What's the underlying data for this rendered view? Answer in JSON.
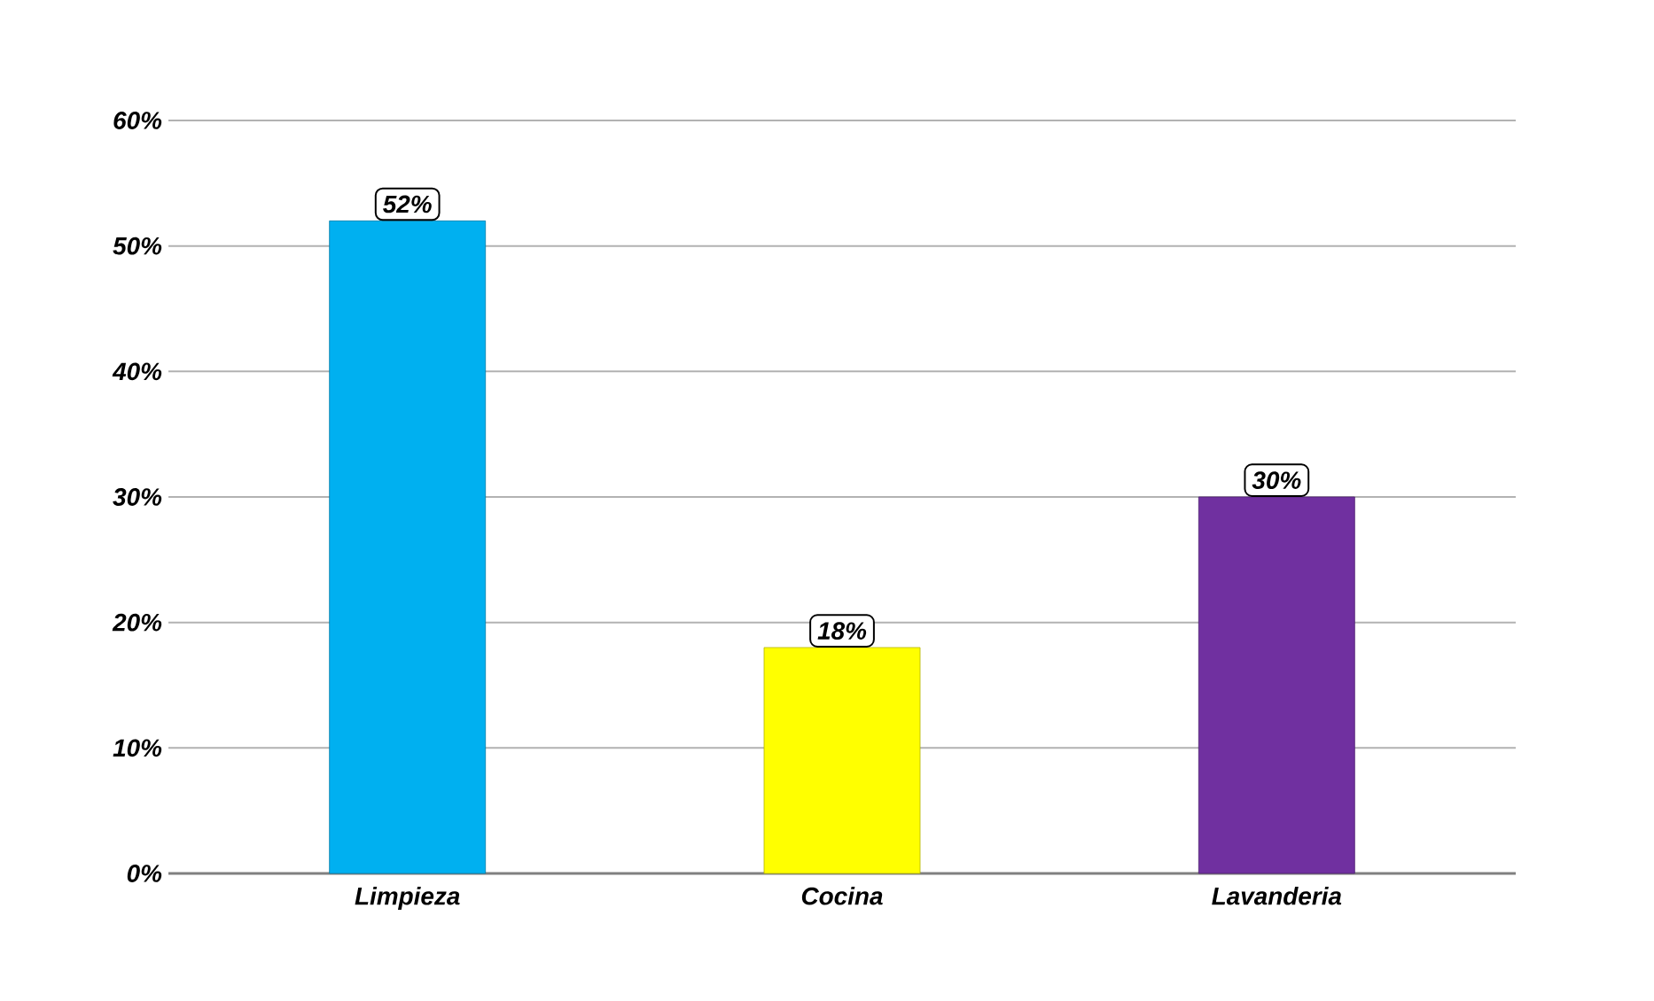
{
  "chart_data": {
    "type": "bar",
    "categories": [
      "Limpieza",
      "Cocina",
      "Lavanderia"
    ],
    "values": [
      52,
      18,
      30
    ],
    "colors": [
      "#00b0f0",
      "#ffff00",
      "#7030a0"
    ],
    "value_labels": [
      "52%",
      "18%",
      "30%"
    ],
    "ylim": [
      0,
      60
    ],
    "yticks": [
      {
        "value": 0,
        "label": "0%"
      },
      {
        "value": 10,
        "label": "10%"
      },
      {
        "value": 20,
        "label": "20%"
      },
      {
        "value": 30,
        "label": "30%"
      },
      {
        "value": 40,
        "label": "40%"
      },
      {
        "value": 50,
        "label": "50%"
      },
      {
        "value": 60,
        "label": "60%"
      }
    ],
    "grid": "y"
  }
}
